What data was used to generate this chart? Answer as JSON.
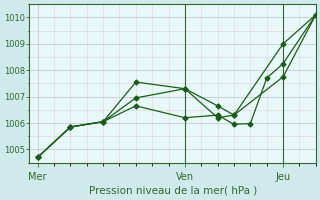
{
  "title": "Pression niveau de la mer( hPa )",
  "bg_color": "#ceeaea",
  "plot_bg_color": "#e8f8f8",
  "line_color": "#1a5c1a",
  "marker_color": "#1a5c1a",
  "ylim": [
    1004.5,
    1010.5
  ],
  "yticks": [
    1005,
    1006,
    1007,
    1008,
    1009,
    1010
  ],
  "xtick_labels": [
    "Mer",
    "Ven",
    "Jeu"
  ],
  "xtick_positions": [
    0,
    9,
    15
  ],
  "xlim": [
    -0.5,
    17
  ],
  "series": [
    {
      "x": [
        0,
        2,
        4,
        6,
        9,
        11,
        12,
        15,
        17
      ],
      "y": [
        1004.7,
        1005.85,
        1006.05,
        1007.55,
        1007.3,
        1006.2,
        1006.3,
        1009.0,
        1010.1
      ]
    },
    {
      "x": [
        0,
        2,
        4,
        6,
        9,
        11,
        12,
        15,
        17
      ],
      "y": [
        1004.7,
        1005.85,
        1006.05,
        1006.95,
        1007.3,
        1006.65,
        1006.3,
        1007.75,
        1010.1
      ]
    },
    {
      "x": [
        0,
        2,
        4,
        6,
        9,
        11,
        12,
        13,
        14,
        15,
        17
      ],
      "y": [
        1004.7,
        1005.85,
        1006.05,
        1006.65,
        1006.2,
        1006.3,
        1005.95,
        1005.98,
        1007.7,
        1008.25,
        1010.1
      ]
    }
  ],
  "vline_positions": [
    9,
    15
  ],
  "grid_color": "#c8c8d8",
  "minor_grid_color": "#dcd0d8",
  "axis_color": "#336633",
  "tick_color": "#336633",
  "title_color": "#336633",
  "title_fontsize": 7.5,
  "ytick_fontsize": 6,
  "xtick_fontsize": 7
}
